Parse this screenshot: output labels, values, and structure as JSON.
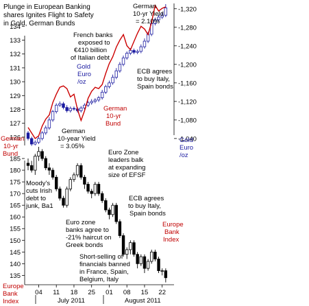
{
  "chart_data": {
    "type": "line",
    "title_lines": [
      "Plunge in European Banking",
      "shares Ignites Flight to Safety",
      "in Gold, German Bunds"
    ],
    "x_tick_labels": [
      "04",
      "11",
      "18",
      "25",
      "01",
      "08",
      "15",
      "22"
    ],
    "months": [
      "July 2011",
      "August 2011"
    ],
    "panels": {
      "top": {
        "left_axis": {
          "label_lines": [
            "German",
            "10-yr",
            "Bund"
          ],
          "ticks": [
            126,
            127,
            128,
            129,
            130,
            131,
            132,
            133,
            134
          ],
          "ylim": [
            125.4,
            135.6
          ]
        },
        "right_axis": {
          "label_lines": [
            "Gold",
            "Euro",
            "/oz"
          ],
          "tick_labels": [
            "1,040",
            "1,080",
            "1,120",
            "1,160",
            "1,200",
            "1,240",
            "1,280",
            "1,320"
          ],
          "ticks": [
            1040,
            1080,
            1120,
            1160,
            1200,
            1240,
            1280,
            1320
          ],
          "ylim": [
            1025,
            1330
          ]
        }
      },
      "bottom": {
        "left_axis": {
          "label_lines": [
            "Europe",
            "Bank",
            "Index"
          ],
          "ticks": [
            135,
            140,
            145,
            150,
            155,
            160,
            165,
            170,
            175,
            180,
            185
          ],
          "ylim": [
            131,
            190
          ]
        }
      }
    },
    "series": [
      {
        "name": "German 10-yr Bund",
        "panel": "top",
        "axis": "left",
        "style": "line",
        "color": "#cc0000",
        "x": [
          0,
          1,
          2,
          3,
          4,
          5,
          6,
          7,
          8,
          9,
          10,
          11,
          12,
          13,
          14,
          15,
          16,
          17,
          18,
          19,
          20,
          21,
          22,
          23,
          24,
          25,
          26,
          27,
          28,
          29,
          30,
          31,
          32,
          33,
          34,
          35,
          36,
          37,
          38,
          39
        ],
        "values": [
          126.7,
          126.3,
          125.9,
          126.1,
          126.8,
          127.3,
          127.6,
          128.5,
          129.1,
          129.6,
          129.7,
          129.5,
          128.9,
          129.1,
          128.0,
          127.2,
          127.9,
          128.8,
          129.3,
          129.6,
          129.5,
          129.8,
          130.6,
          131.3,
          131.8,
          132.5,
          133.0,
          133.4,
          132.6,
          132.3,
          132.9,
          133.5,
          134.0,
          133.8,
          133.4,
          134.3,
          135.5,
          135.1,
          135.3,
          135.4
        ]
      },
      {
        "name": "Gold Euro /oz",
        "panel": "top",
        "axis": "right",
        "style": "candlestick",
        "color": "#1a1aa0",
        "x": [
          0,
          1,
          2,
          3,
          4,
          5,
          6,
          7,
          8,
          9,
          10,
          11,
          12,
          13,
          14,
          15,
          16,
          17,
          18,
          19,
          20,
          21,
          22,
          23,
          24,
          25,
          26,
          27,
          28,
          29,
          30,
          31,
          32,
          33,
          34,
          35,
          36,
          37,
          38,
          39
        ],
        "open": [
          1052,
          1040,
          1028,
          1032,
          1040,
          1052,
          1063,
          1080,
          1098,
          1112,
          1115,
          1107,
          1100,
          1105,
          1104,
          1100,
          1106,
          1112,
          1117,
          1120,
          1123,
          1128,
          1140,
          1152,
          1160,
          1172,
          1186,
          1200,
          1214,
          1224,
          1230,
          1226,
          1228,
          1238,
          1250,
          1265,
          1288,
          1296,
          1302,
          1306
        ],
        "close": [
          1040,
          1028,
          1032,
          1040,
          1052,
          1063,
          1080,
          1098,
          1112,
          1115,
          1107,
          1100,
          1105,
          1104,
          1100,
          1106,
          1112,
          1117,
          1120,
          1123,
          1128,
          1140,
          1152,
          1160,
          1172,
          1186,
          1200,
          1214,
          1224,
          1230,
          1226,
          1228,
          1238,
          1250,
          1265,
          1288,
          1296,
          1302,
          1306,
          1322
        ],
        "high": [
          1056,
          1044,
          1036,
          1044,
          1056,
          1068,
          1086,
          1102,
          1116,
          1120,
          1119,
          1112,
          1109,
          1109,
          1108,
          1110,
          1116,
          1121,
          1125,
          1127,
          1132,
          1145,
          1156,
          1165,
          1178,
          1192,
          1205,
          1219,
          1228,
          1235,
          1234,
          1232,
          1243,
          1256,
          1270,
          1293,
          1301,
          1307,
          1312,
          1330
        ],
        "low": [
          1036,
          1024,
          1025,
          1028,
          1036,
          1048,
          1059,
          1076,
          1094,
          1108,
          1103,
          1096,
          1096,
          1100,
          1096,
          1096,
          1102,
          1108,
          1113,
          1116,
          1119,
          1124,
          1136,
          1148,
          1156,
          1168,
          1182,
          1196,
          1210,
          1220,
          1222,
          1222,
          1224,
          1234,
          1246,
          1261,
          1284,
          1292,
          1298,
          1302
        ]
      },
      {
        "name": "Europe Bank Index",
        "panel": "bottom",
        "axis": "left",
        "style": "candlestick",
        "color": "#000000",
        "x": [
          0,
          1,
          2,
          3,
          4,
          5,
          6,
          7,
          8,
          9,
          10,
          11,
          12,
          13,
          14,
          15,
          16,
          17,
          18,
          19,
          20,
          21,
          22,
          23,
          24,
          25,
          26,
          27,
          28,
          29,
          30,
          31,
          32,
          33,
          34,
          35,
          36,
          37,
          38,
          39
        ],
        "open": [
          183,
          182,
          180,
          186,
          188,
          185,
          181,
          180,
          177,
          172,
          168,
          165,
          172,
          176,
          178,
          182,
          177,
          174,
          171,
          170,
          174,
          170,
          167,
          163,
          161,
          165,
          158,
          152,
          144,
          146,
          149,
          144,
          140,
          143,
          138,
          141,
          145,
          142,
          137,
          137
        ],
        "close": [
          182,
          180,
          186,
          188,
          185,
          181,
          180,
          177,
          172,
          168,
          165,
          172,
          176,
          178,
          182,
          177,
          174,
          171,
          170,
          174,
          170,
          167,
          163,
          161,
          165,
          158,
          152,
          144,
          146,
          149,
          144,
          140,
          143,
          138,
          141,
          145,
          142,
          137,
          137,
          134
        ],
        "high": [
          185,
          184,
          187,
          190,
          189,
          186,
          183,
          181,
          178,
          173,
          169,
          173,
          177,
          179,
          183,
          183,
          178,
          175,
          172,
          175,
          175,
          171,
          168,
          164,
          166,
          166,
          159,
          153,
          147,
          150,
          150,
          145,
          144,
          144,
          142,
          146,
          146,
          143,
          138,
          138
        ],
        "low": [
          180,
          179,
          178,
          184,
          184,
          180,
          178,
          176,
          171,
          167,
          164,
          164,
          171,
          175,
          177,
          176,
          172,
          170,
          168,
          169,
          169,
          166,
          162,
          159,
          160,
          157,
          151,
          143,
          142,
          144,
          143,
          138,
          139,
          136,
          137,
          140,
          141,
          136,
          135,
          132
        ]
      }
    ],
    "annotations": [
      {
        "panel": "top",
        "lines": [
          "German",
          "10-yr Yield",
          "= 2.10%"
        ],
        "color": "black"
      },
      {
        "panel": "top",
        "lines": [
          "French banks",
          "exposed to",
          "€410 billion",
          "of Italian debt"
        ],
        "color": "black"
      },
      {
        "panel": "top",
        "lines": [
          "Gold",
          "Euro",
          "/oz"
        ],
        "color": "blue"
      },
      {
        "panel": "top",
        "lines": [
          "ECB agrees",
          "to buy Italy,",
          "Spain bonds"
        ],
        "color": "black"
      },
      {
        "panel": "top",
        "lines": [
          "German",
          "10-yr",
          "Bund"
        ],
        "color": "red"
      },
      {
        "panel": "top",
        "lines": [
          "German",
          "10-year Yield",
          "= 3.05%"
        ],
        "color": "black"
      },
      {
        "panel": "bottom",
        "lines": [
          "Euro Zone",
          "leaders balk",
          "at expanding",
          "size of EFSF"
        ],
        "color": "black"
      },
      {
        "panel": "bottom",
        "lines": [
          "Moody's",
          "cuts Irish",
          "debt to",
          "junk, Ba1"
        ],
        "color": "black"
      },
      {
        "panel": "bottom",
        "lines": [
          "ECB agrees",
          "to buy Italy,",
          "Spain bonds"
        ],
        "color": "black"
      },
      {
        "panel": "bottom",
        "lines": [
          "Euro zone",
          "banks agree to",
          "-21% haircut on",
          "Greek bonds"
        ],
        "color": "black"
      },
      {
        "panel": "bottom",
        "lines": [
          "Europe",
          "Bank",
          "Index"
        ],
        "color": "red"
      },
      {
        "panel": "bottom",
        "lines": [
          "Short-selling of",
          "financials banned",
          "in France, Spain,",
          "Belgium, Italy"
        ],
        "color": "black"
      }
    ],
    "grid": false,
    "legend": "none"
  }
}
